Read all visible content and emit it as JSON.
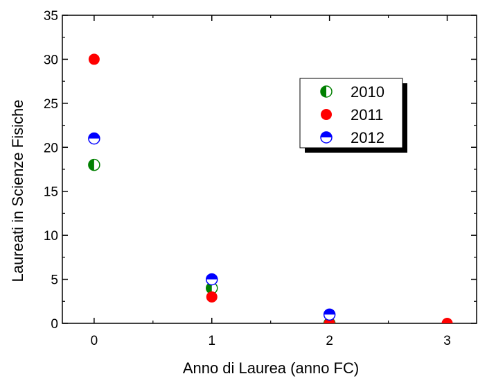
{
  "chart_data": {
    "type": "scatter",
    "title": "",
    "xlabel": "Anno di Laurea (anno FC)",
    "ylabel": "Laureati in Scienze Fisiche",
    "xlim": [
      -0.27,
      3.25
    ],
    "ylim": [
      0,
      35
    ],
    "xticks": [
      0,
      1,
      2,
      3
    ],
    "yticks": [
      0,
      5,
      10,
      15,
      20,
      25,
      30,
      35
    ],
    "grid": false,
    "legend_position": "top-right",
    "series": [
      {
        "name": "2010",
        "color": "#008000",
        "marker": "half-left",
        "x": [
          0,
          1,
          2
        ],
        "y": [
          18,
          4,
          0
        ]
      },
      {
        "name": "2011",
        "color": "#ff0000",
        "marker": "full",
        "x": [
          0,
          1,
          2,
          3
        ],
        "y": [
          30,
          3,
          0,
          0
        ]
      },
      {
        "name": "2012",
        "color": "#0000ff",
        "marker": "half-top",
        "x": [
          0,
          1,
          2
        ],
        "y": [
          21,
          5,
          1
        ]
      }
    ]
  }
}
